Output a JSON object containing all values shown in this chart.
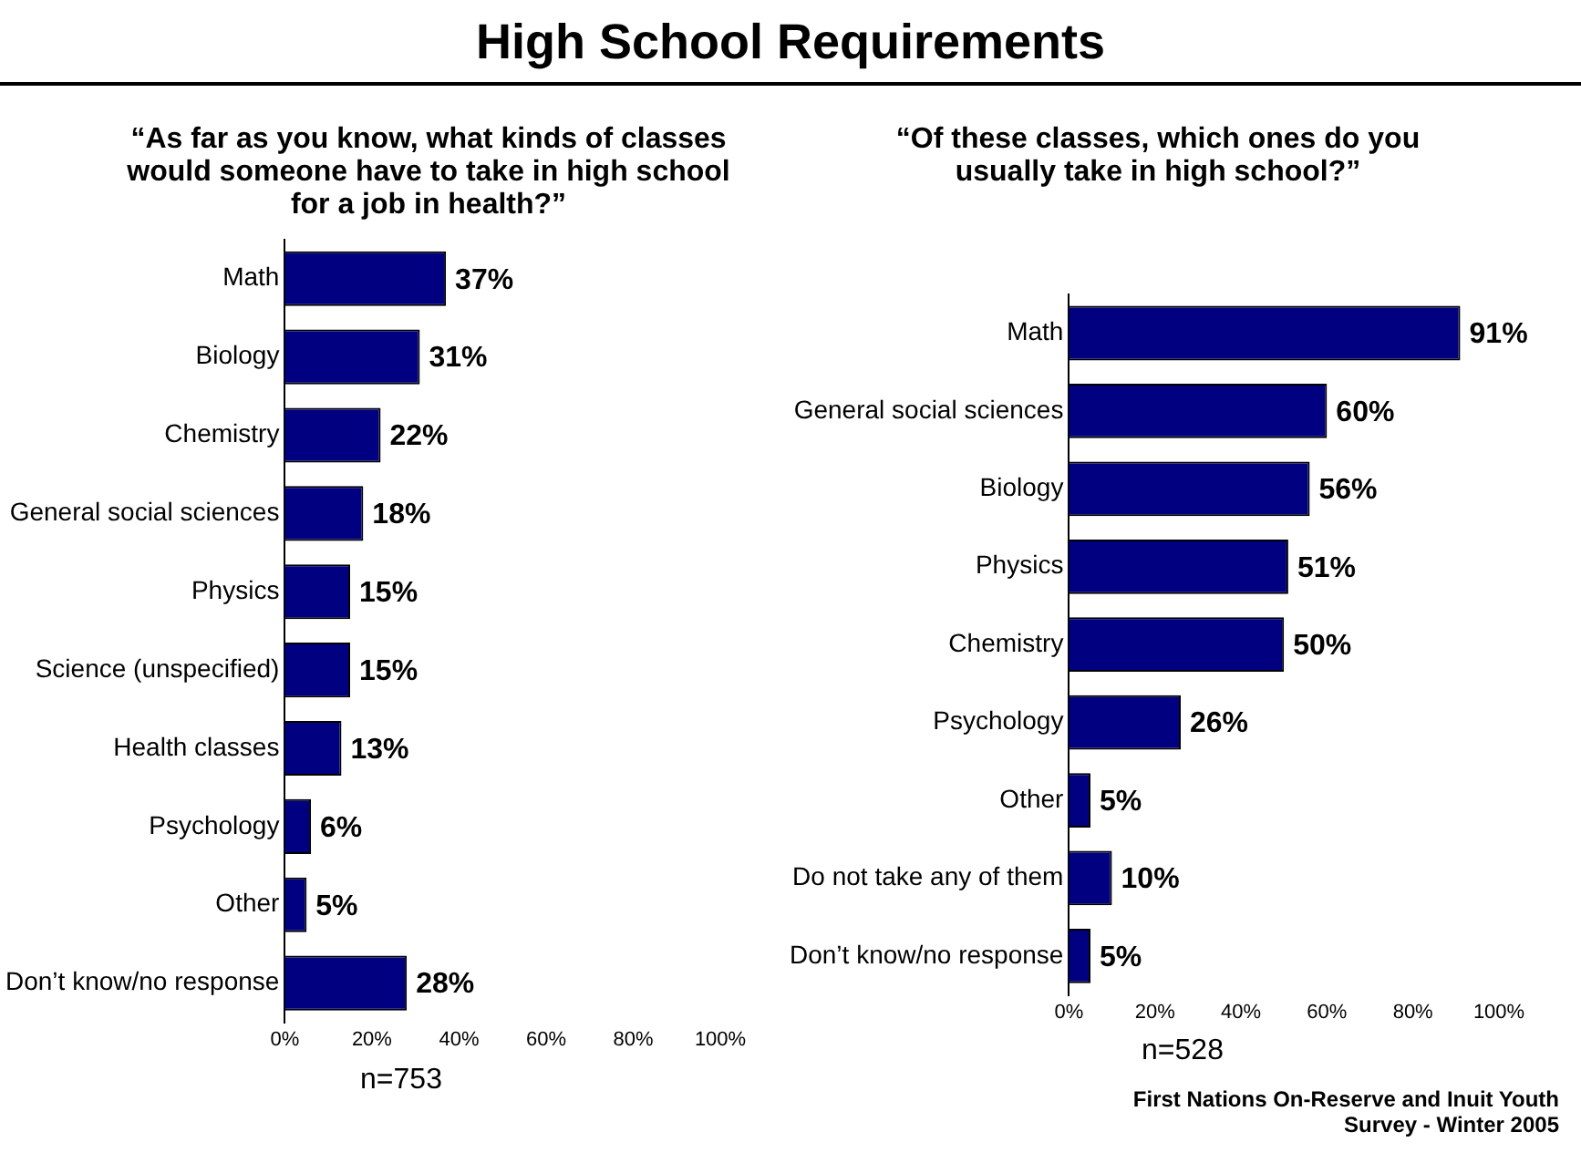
{
  "chart_data": [
    {
      "type": "other",
      "title": "High School Requirements"
    },
    {
      "type": "bar",
      "orientation": "horizontal",
      "title": "“As far as you know, what kinds of classes would someone have to take in high school for a job in health?”",
      "categories": [
        "Math",
        "Biology",
        "Chemistry",
        "General social sciences",
        "Physics",
        "Science (unspecified)",
        "Health classes",
        "Psychology",
        "Other",
        "Don’t know/no response"
      ],
      "values": [
        37,
        31,
        22,
        18,
        15,
        15,
        13,
        6,
        5,
        28
      ],
      "value_labels": [
        "37%",
        "31%",
        "22%",
        "18%",
        "15%",
        "15%",
        "13%",
        "6%",
        "5%",
        "28%"
      ],
      "color": "#000080",
      "xlim": [
        0,
        100
      ],
      "xticks": [
        {
          "value": 0,
          "label": "0%"
        },
        {
          "value": 20,
          "label": "20%"
        },
        {
          "value": 40,
          "label": "40%"
        },
        {
          "value": 60,
          "label": "60%"
        },
        {
          "value": 80,
          "label": "80%"
        },
        {
          "value": 100,
          "label": "100%"
        }
      ],
      "grid": false,
      "legend": false,
      "annotations": [
        "n=753"
      ]
    },
    {
      "type": "bar",
      "orientation": "horizontal",
      "title": "“Of these classes, which ones do you usually take in high school?”",
      "categories": [
        "Math",
        "General social sciences",
        "Biology",
        "Physics",
        "Chemistry",
        "Psychology",
        "Other",
        "Do not take any of them",
        "Don’t know/no response"
      ],
      "values": [
        91,
        60,
        56,
        51,
        50,
        26,
        5,
        10,
        5
      ],
      "value_labels": [
        "91%",
        "60%",
        "56%",
        "51%",
        "50%",
        "26%",
        "5%",
        "10%",
        "5%"
      ],
      "color": "#000080",
      "xlim": [
        0,
        100
      ],
      "xticks": [
        {
          "value": 0,
          "label": "0%"
        },
        {
          "value": 20,
          "label": "20%"
        },
        {
          "value": 40,
          "label": "40%"
        },
        {
          "value": 60,
          "label": "60%"
        },
        {
          "value": 80,
          "label": "80%"
        },
        {
          "value": 100,
          "label": "100%"
        }
      ],
      "grid": false,
      "legend": false,
      "annotations": [
        "n=528",
        "First Nations On-Reserve and Inuit Youth Survey - Winter 2005"
      ]
    }
  ]
}
